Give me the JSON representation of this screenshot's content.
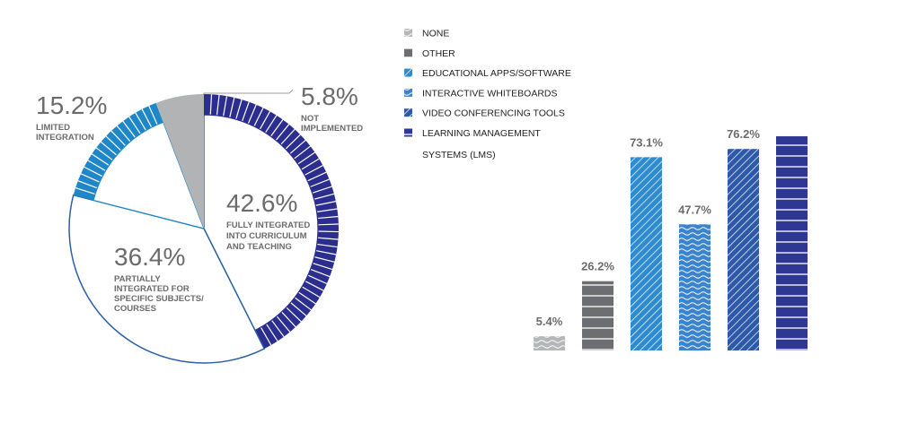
{
  "chart_data": [
    {
      "type": "pie",
      "title": "",
      "slices": [
        {
          "key": "fully",
          "value": 42.6,
          "percent_label": "42.6%",
          "label_lines": [
            "FULLY INTEGRATED",
            "INTO CURRICULUM",
            "AND TEACHING"
          ],
          "color": "#2b2e8f",
          "pattern": "lines"
        },
        {
          "key": "partially",
          "value": 36.4,
          "percent_label": "36.4%",
          "label_lines": [
            "PARTIALLY",
            "INTEGRATED FOR",
            "SPECIFIC SUBJECTS/",
            "COURSES"
          ],
          "color": "#ffffff",
          "pattern": "none"
        },
        {
          "key": "limited",
          "value": 15.2,
          "percent_label": "15.2%",
          "label_lines": [
            "LIMITED",
            "INTEGRATION"
          ],
          "color": "#1f87c8",
          "pattern": "lines"
        },
        {
          "key": "not",
          "value": 5.8,
          "percent_label": "5.8%",
          "label_lines": [
            "NOT",
            "IMPLEMENTED"
          ],
          "color": "#b2b3b5",
          "pattern": "none"
        }
      ]
    },
    {
      "type": "bar",
      "title": "",
      "categories": [
        "NONE",
        "OTHER",
        "EDUCATIONAL APPS/SOFTWARE",
        "INTERACTIVE WHITEBOARDS",
        "VIDEO CONFERENCING TOOLS",
        "LEARNING MANAGEMENT SYSTEMS (LMS)"
      ],
      "values": [
        5.4,
        26.2,
        73.1,
        47.7,
        76.2,
        81.0
      ],
      "value_labels": [
        "5.4%",
        "26.2%",
        "73.1%",
        "47.7%",
        "76.2%",
        ""
      ],
      "colors": [
        "#b5b6b8",
        "#6d6e71",
        "#2e8bd0",
        "#3a84cf",
        "#2c59a8",
        "#2e3792"
      ],
      "patterns": [
        "wave",
        "hlines",
        "diag",
        "wave",
        "diag",
        "hlines"
      ],
      "ylim": [
        0,
        100
      ],
      "legend": {
        "placement": "top-left",
        "items": [
          {
            "lines": [
              "NONE"
            ]
          },
          {
            "lines": [
              "OTHER"
            ]
          },
          {
            "lines": [
              "EDUCATIONAL APPS/SOFTWARE"
            ]
          },
          {
            "lines": [
              "INTERACTIVE WHITEBOARDS"
            ]
          },
          {
            "lines": [
              "VIDEO CONFERENCING TOOLS"
            ]
          },
          {
            "lines": [
              "LEARNING MANAGEMENT",
              "SYSTEMS (LMS)"
            ]
          }
        ]
      }
    }
  ]
}
